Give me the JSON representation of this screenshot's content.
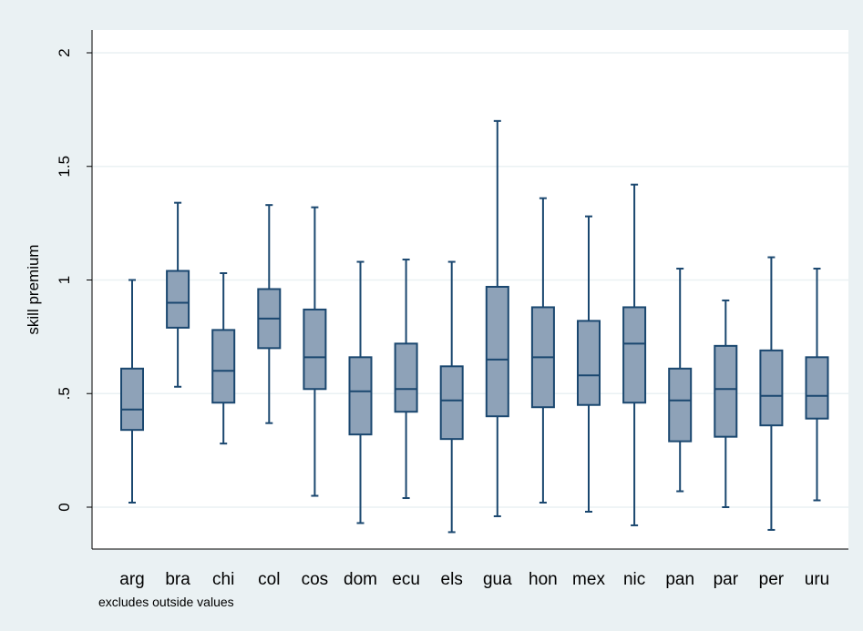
{
  "chart_data": {
    "type": "boxplot",
    "title": "",
    "xlabel": "",
    "ylabel": "skill premium",
    "ylim": [
      -0.18,
      2.1
    ],
    "yticks": [
      0,
      0.5,
      1,
      1.5,
      2
    ],
    "ytick_labels": [
      "0",
      ".5",
      "1",
      "1.5",
      "2"
    ],
    "grid": "horizontal",
    "legend": "none",
    "note": "excludes outside values",
    "colors": {
      "outer_background": "#eaf1f3",
      "plot_background": "#ffffff",
      "box_fill": "#8ea2b8",
      "box_stroke": "#1a476f",
      "grid": "#eaf1f3",
      "axis": "#000000"
    },
    "categories": [
      "arg",
      "bra",
      "chi",
      "col",
      "cos",
      "dom",
      "ecu",
      "els",
      "gua",
      "hon",
      "mex",
      "nic",
      "pan",
      "par",
      "per",
      "uru"
    ],
    "boxes": [
      {
        "category": "arg",
        "whisker_low": 0.02,
        "q1": 0.34,
        "median": 0.43,
        "q3": 0.61,
        "whisker_high": 1.0
      },
      {
        "category": "bra",
        "whisker_low": 0.53,
        "q1": 0.79,
        "median": 0.9,
        "q3": 1.04,
        "whisker_high": 1.34
      },
      {
        "category": "chi",
        "whisker_low": 0.28,
        "q1": 0.46,
        "median": 0.6,
        "q3": 0.78,
        "whisker_high": 1.03
      },
      {
        "category": "col",
        "whisker_low": 0.37,
        "q1": 0.7,
        "median": 0.83,
        "q3": 0.96,
        "whisker_high": 1.33
      },
      {
        "category": "cos",
        "whisker_low": 0.05,
        "q1": 0.52,
        "median": 0.66,
        "q3": 0.87,
        "whisker_high": 1.32
      },
      {
        "category": "dom",
        "whisker_low": -0.07,
        "q1": 0.32,
        "median": 0.51,
        "q3": 0.66,
        "whisker_high": 1.08
      },
      {
        "category": "ecu",
        "whisker_low": 0.04,
        "q1": 0.42,
        "median": 0.52,
        "q3": 0.72,
        "whisker_high": 1.09
      },
      {
        "category": "els",
        "whisker_low": -0.11,
        "q1": 0.3,
        "median": 0.47,
        "q3": 0.62,
        "whisker_high": 1.08
      },
      {
        "category": "gua",
        "whisker_low": -0.04,
        "q1": 0.4,
        "median": 0.65,
        "q3": 0.97,
        "whisker_high": 1.7
      },
      {
        "category": "hon",
        "whisker_low": 0.02,
        "q1": 0.44,
        "median": 0.66,
        "q3": 0.88,
        "whisker_high": 1.36
      },
      {
        "category": "mex",
        "whisker_low": -0.02,
        "q1": 0.45,
        "median": 0.58,
        "q3": 0.82,
        "whisker_high": 1.28
      },
      {
        "category": "nic",
        "whisker_low": -0.08,
        "q1": 0.46,
        "median": 0.72,
        "q3": 0.88,
        "whisker_high": 1.42
      },
      {
        "category": "pan",
        "whisker_low": 0.07,
        "q1": 0.29,
        "median": 0.47,
        "q3": 0.61,
        "whisker_high": 1.05
      },
      {
        "category": "par",
        "whisker_low": 0.0,
        "q1": 0.31,
        "median": 0.52,
        "q3": 0.71,
        "whisker_high": 0.91
      },
      {
        "category": "per",
        "whisker_low": -0.1,
        "q1": 0.36,
        "median": 0.49,
        "q3": 0.69,
        "whisker_high": 1.1
      },
      {
        "category": "uru",
        "whisker_low": 0.03,
        "q1": 0.39,
        "median": 0.49,
        "q3": 0.66,
        "whisker_high": 1.05
      }
    ]
  }
}
